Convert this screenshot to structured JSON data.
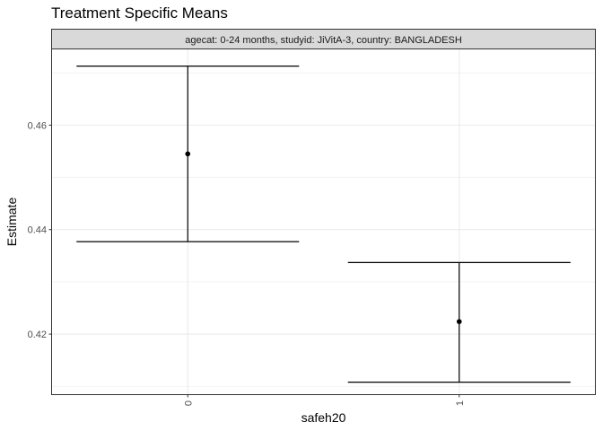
{
  "chart_data": {
    "type": "scatter",
    "title": "Treatment Specific Means",
    "facet_label": "agecat: 0-24 months, studyid: JiVitA-3, country: BANGLADESH",
    "xlabel": "safeh20",
    "ylabel": "Estimate",
    "categories": [
      "0",
      "1"
    ],
    "series": [
      {
        "points": [
          {
            "x": "0",
            "estimate": 0.4545,
            "lower": 0.4377,
            "upper": 0.4713
          },
          {
            "x": "1",
            "estimate": 0.4224,
            "lower": 0.4108,
            "upper": 0.4337
          }
        ]
      }
    ],
    "ylim": [
      0.4085,
      0.4745
    ],
    "yticks": [
      "0.42",
      "0.44",
      "0.46"
    ],
    "grid": true,
    "colors": {
      "panel_border": "#333333",
      "strip_fill": "#d9d9d9",
      "grid": "#ebebeb",
      "mark": "#000000"
    }
  }
}
